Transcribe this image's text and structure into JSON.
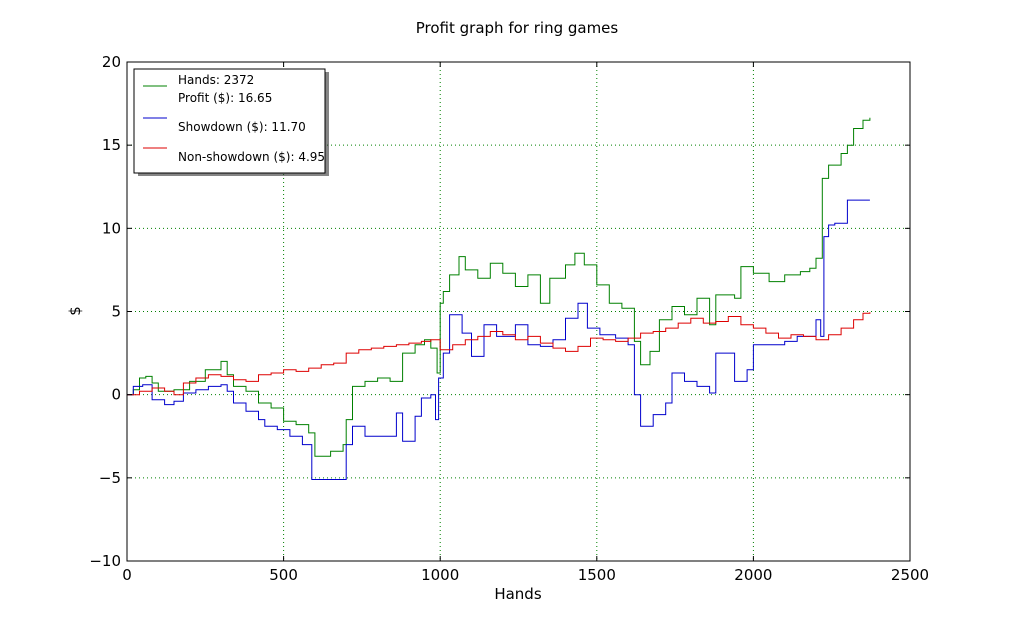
{
  "chart_data": {
    "type": "line",
    "title": "Profit graph for ring games",
    "xlabel": "Hands",
    "ylabel": "$",
    "xlim": [
      0,
      2500
    ],
    "ylim": [
      -10,
      20
    ],
    "xticks": [
      0,
      500,
      1000,
      1500,
      2000,
      2500
    ],
    "yticks": [
      -10,
      -5,
      0,
      5,
      10,
      15,
      20
    ],
    "xtick_labels": [
      "0",
      "500",
      "1000",
      "1500",
      "2000",
      "2500"
    ],
    "ytick_labels": [
      "−10",
      "−5",
      "0",
      "5",
      "10",
      "15",
      "20"
    ],
    "grid": true,
    "legend_position": "top-left",
    "legend": {
      "line1": "Hands: 2372",
      "line2": "Profit ($): 16.65",
      "line3": "Showdown ($): 11.70",
      "line4": "Non-showdown ($): 4.95"
    },
    "series": [
      {
        "key": "profit",
        "color": "#008000",
        "points": [
          [
            0,
            0
          ],
          [
            20,
            0.3
          ],
          [
            40,
            1.0
          ],
          [
            60,
            1.1
          ],
          [
            80,
            0.7
          ],
          [
            100,
            0.2
          ],
          [
            150,
            0.3
          ],
          [
            200,
            0.8
          ],
          [
            250,
            1.5
          ],
          [
            300,
            2.0
          ],
          [
            320,
            1.2
          ],
          [
            340,
            0.5
          ],
          [
            380,
            0.2
          ],
          [
            420,
            -0.5
          ],
          [
            460,
            -0.8
          ],
          [
            500,
            -1.6
          ],
          [
            540,
            -1.8
          ],
          [
            580,
            -2.3
          ],
          [
            600,
            -3.7
          ],
          [
            650,
            -3.4
          ],
          [
            690,
            -3.0
          ],
          [
            700,
            -1.5
          ],
          [
            720,
            0.5
          ],
          [
            760,
            0.8
          ],
          [
            800,
            1.0
          ],
          [
            840,
            0.8
          ],
          [
            880,
            2.5
          ],
          [
            920,
            3.0
          ],
          [
            950,
            3.3
          ],
          [
            970,
            2.8
          ],
          [
            990,
            1.3
          ],
          [
            1000,
            5.5
          ],
          [
            1010,
            6.2
          ],
          [
            1030,
            7.2
          ],
          [
            1060,
            8.3
          ],
          [
            1080,
            7.5
          ],
          [
            1120,
            7.0
          ],
          [
            1160,
            7.9
          ],
          [
            1200,
            7.3
          ],
          [
            1240,
            6.5
          ],
          [
            1280,
            7.2
          ],
          [
            1320,
            5.5
          ],
          [
            1350,
            7.0
          ],
          [
            1400,
            7.8
          ],
          [
            1430,
            8.5
          ],
          [
            1460,
            7.8
          ],
          [
            1500,
            6.6
          ],
          [
            1540,
            5.5
          ],
          [
            1580,
            5.2
          ],
          [
            1620,
            3.2
          ],
          [
            1640,
            1.8
          ],
          [
            1670,
            2.6
          ],
          [
            1700,
            4.5
          ],
          [
            1740,
            5.3
          ],
          [
            1780,
            4.8
          ],
          [
            1820,
            5.8
          ],
          [
            1860,
            4.2
          ],
          [
            1880,
            6.0
          ],
          [
            1940,
            5.8
          ],
          [
            1960,
            7.7
          ],
          [
            2000,
            7.3
          ],
          [
            2050,
            6.8
          ],
          [
            2100,
            7.2
          ],
          [
            2150,
            7.4
          ],
          [
            2180,
            7.6
          ],
          [
            2200,
            8.2
          ],
          [
            2220,
            13.0
          ],
          [
            2240,
            13.8
          ],
          [
            2280,
            14.5
          ],
          [
            2300,
            15.0
          ],
          [
            2320,
            16.0
          ],
          [
            2350,
            16.5
          ],
          [
            2372,
            16.65
          ]
        ]
      },
      {
        "key": "showdown",
        "color": "#0000cc",
        "points": [
          [
            0,
            0
          ],
          [
            20,
            0.5
          ],
          [
            50,
            0.6
          ],
          [
            80,
            -0.3
          ],
          [
            120,
            -0.6
          ],
          [
            150,
            -0.4
          ],
          [
            180,
            0.1
          ],
          [
            220,
            0.3
          ],
          [
            260,
            0.5
          ],
          [
            300,
            0.6
          ],
          [
            320,
            0.2
          ],
          [
            340,
            -0.5
          ],
          [
            380,
            -1.0
          ],
          [
            420,
            -1.5
          ],
          [
            440,
            -1.9
          ],
          [
            480,
            -2.1
          ],
          [
            520,
            -2.5
          ],
          [
            560,
            -3.0
          ],
          [
            580,
            -3.0
          ],
          [
            590,
            -5.1
          ],
          [
            660,
            -5.1
          ],
          [
            700,
            -3.0
          ],
          [
            720,
            -1.9
          ],
          [
            760,
            -2.5
          ],
          [
            820,
            -2.5
          ],
          [
            860,
            -1.1
          ],
          [
            880,
            -2.8
          ],
          [
            920,
            -1.3
          ],
          [
            940,
            -0.2
          ],
          [
            970,
            0.0
          ],
          [
            985,
            -1.5
          ],
          [
            995,
            1.0
          ],
          [
            1010,
            2.5
          ],
          [
            1030,
            4.8
          ],
          [
            1070,
            3.7
          ],
          [
            1100,
            2.3
          ],
          [
            1140,
            4.2
          ],
          [
            1180,
            3.5
          ],
          [
            1240,
            4.2
          ],
          [
            1280,
            3.0
          ],
          [
            1320,
            2.9
          ],
          [
            1360,
            3.3
          ],
          [
            1400,
            4.6
          ],
          [
            1440,
            5.5
          ],
          [
            1470,
            4.0
          ],
          [
            1510,
            3.6
          ],
          [
            1560,
            3.4
          ],
          [
            1600,
            3.0
          ],
          [
            1620,
            0.0
          ],
          [
            1640,
            -1.9
          ],
          [
            1680,
            -1.2
          ],
          [
            1720,
            -0.5
          ],
          [
            1740,
            1.3
          ],
          [
            1780,
            0.8
          ],
          [
            1820,
            0.5
          ],
          [
            1860,
            0.1
          ],
          [
            1880,
            2.5
          ],
          [
            1920,
            2.5
          ],
          [
            1940,
            0.8
          ],
          [
            1980,
            1.5
          ],
          [
            2000,
            3.0
          ],
          [
            2060,
            3.0
          ],
          [
            2100,
            3.2
          ],
          [
            2140,
            3.5
          ],
          [
            2180,
            3.5
          ],
          [
            2200,
            4.5
          ],
          [
            2215,
            3.5
          ],
          [
            2225,
            9.5
          ],
          [
            2240,
            10.2
          ],
          [
            2260,
            10.3
          ],
          [
            2300,
            11.7
          ],
          [
            2372,
            11.7
          ]
        ]
      },
      {
        "key": "nonshowdown",
        "color": "#dd0000",
        "points": [
          [
            0,
            0
          ],
          [
            40,
            0.2
          ],
          [
            80,
            0.4
          ],
          [
            120,
            0.2
          ],
          [
            150,
            0.0
          ],
          [
            180,
            0.7
          ],
          [
            220,
            1.0
          ],
          [
            260,
            1.2
          ],
          [
            300,
            1.1
          ],
          [
            340,
            0.9
          ],
          [
            380,
            0.8
          ],
          [
            420,
            1.2
          ],
          [
            460,
            1.3
          ],
          [
            500,
            1.5
          ],
          [
            540,
            1.4
          ],
          [
            580,
            1.6
          ],
          [
            620,
            1.8
          ],
          [
            660,
            1.9
          ],
          [
            700,
            2.5
          ],
          [
            740,
            2.7
          ],
          [
            780,
            2.8
          ],
          [
            820,
            2.9
          ],
          [
            860,
            3.0
          ],
          [
            900,
            3.1
          ],
          [
            940,
            3.2
          ],
          [
            970,
            3.3
          ],
          [
            1000,
            2.7
          ],
          [
            1040,
            3.0
          ],
          [
            1080,
            3.3
          ],
          [
            1120,
            3.5
          ],
          [
            1160,
            3.8
          ],
          [
            1200,
            3.6
          ],
          [
            1240,
            3.3
          ],
          [
            1280,
            3.5
          ],
          [
            1320,
            3.1
          ],
          [
            1360,
            2.8
          ],
          [
            1400,
            2.6
          ],
          [
            1440,
            2.9
          ],
          [
            1480,
            3.4
          ],
          [
            1520,
            3.3
          ],
          [
            1560,
            3.2
          ],
          [
            1600,
            3.4
          ],
          [
            1640,
            3.7
          ],
          [
            1680,
            3.8
          ],
          [
            1720,
            4.0
          ],
          [
            1760,
            4.3
          ],
          [
            1800,
            4.6
          ],
          [
            1840,
            4.3
          ],
          [
            1880,
            4.4
          ],
          [
            1920,
            4.7
          ],
          [
            1960,
            4.2
          ],
          [
            2000,
            4.0
          ],
          [
            2040,
            3.7
          ],
          [
            2080,
            3.4
          ],
          [
            2120,
            3.6
          ],
          [
            2160,
            3.5
          ],
          [
            2200,
            3.3
          ],
          [
            2240,
            3.6
          ],
          [
            2280,
            4.0
          ],
          [
            2320,
            4.5
          ],
          [
            2350,
            4.9
          ],
          [
            2372,
            4.95
          ]
        ]
      }
    ]
  }
}
